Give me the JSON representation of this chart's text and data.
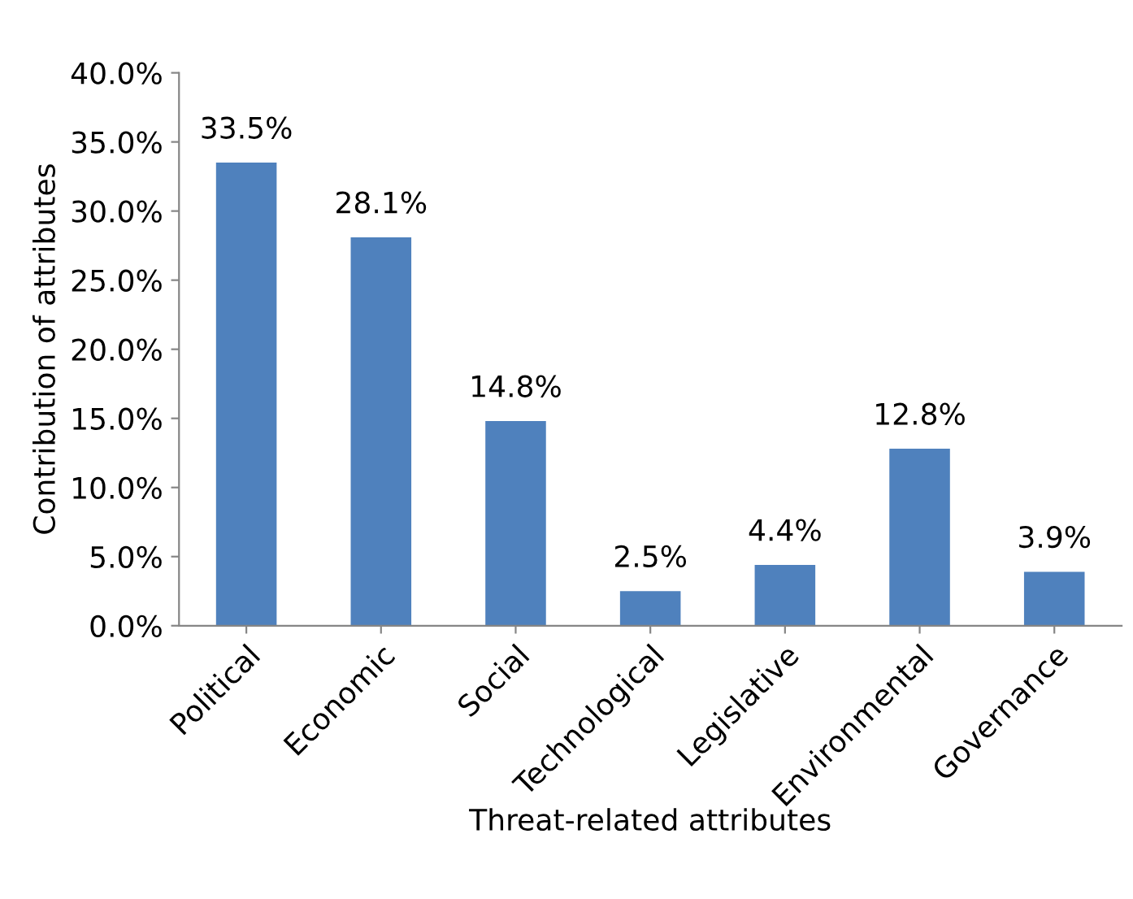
{
  "chart_data": {
    "type": "bar",
    "xlabel": "Threat-related attributes",
    "ylabel": "Contribution of attributes",
    "categories": [
      "Political",
      "Economic",
      "Social",
      "Technological",
      "Legislative",
      "Environmental",
      "Governance"
    ],
    "values": [
      33.5,
      28.1,
      14.8,
      2.5,
      4.4,
      12.8,
      3.9
    ],
    "value_labels": [
      "33.5%",
      "28.1%",
      "14.8%",
      "2.5%",
      "4.4%",
      "12.8%",
      "3.9%"
    ],
    "color": "#4f81bd",
    "ylim": [
      0,
      40
    ],
    "yticks": [
      {
        "value": 0,
        "label": "0.0%"
      },
      {
        "value": 5,
        "label": "5.0%"
      },
      {
        "value": 10,
        "label": "10.0%"
      },
      {
        "value": 15,
        "label": "15.0%"
      },
      {
        "value": 20,
        "label": "20.0%"
      },
      {
        "value": 25,
        "label": "25.0%"
      },
      {
        "value": 30,
        "label": "30.0%"
      },
      {
        "value": 35,
        "label": "35.0%"
      },
      {
        "value": 40,
        "label": "40.0%"
      }
    ],
    "grid": false
  }
}
